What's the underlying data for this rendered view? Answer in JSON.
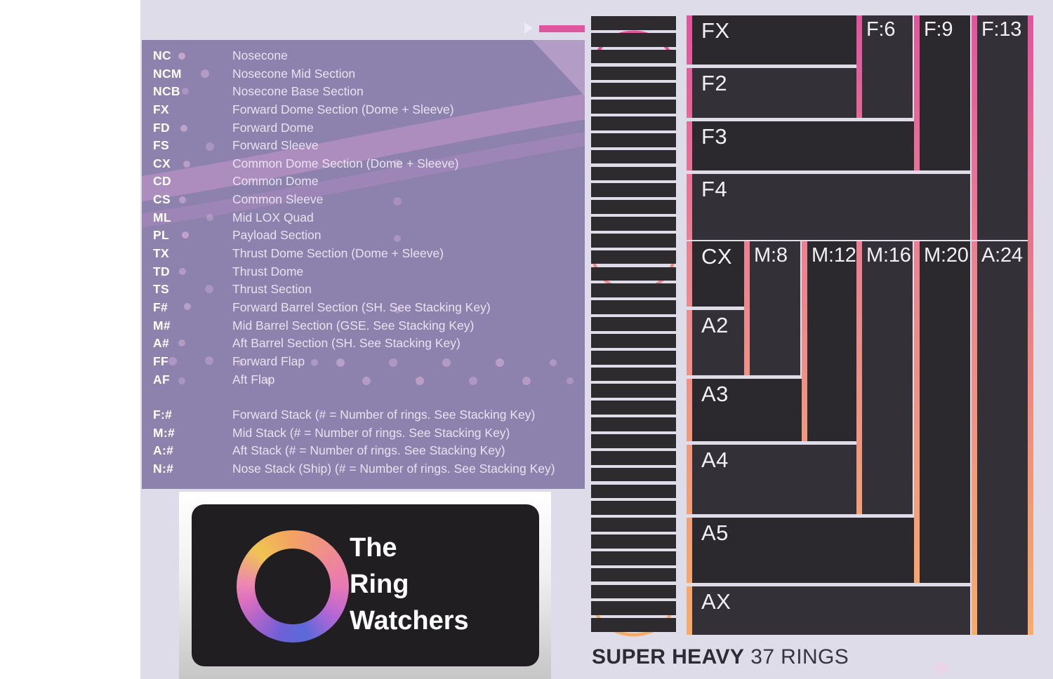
{
  "legend": {
    "items": [
      {
        "abbr": "NC",
        "desc": "Nosecone"
      },
      {
        "abbr": "NCM",
        "desc": "Nosecone Mid Section"
      },
      {
        "abbr": "NCB",
        "desc": "Nosecone Base Section"
      },
      {
        "abbr": "FX",
        "desc": "Forward Dome Section (Dome + Sleeve)"
      },
      {
        "abbr": "FD",
        "desc": "Forward Dome"
      },
      {
        "abbr": "FS",
        "desc": "Forward Sleeve"
      },
      {
        "abbr": "CX",
        "desc": "Common Dome Section (Dome + Sleeve)"
      },
      {
        "abbr": "CD",
        "desc": "Common Dome"
      },
      {
        "abbr": "CS",
        "desc": "Common Sleeve"
      },
      {
        "abbr": "ML",
        "desc": "Mid LOX Quad"
      },
      {
        "abbr": "PL",
        "desc": "Payload Section"
      },
      {
        "abbr": "TX",
        "desc": "Thrust Dome Section (Dome + Sleeve)"
      },
      {
        "abbr": "TD",
        "desc": "Thrust Dome"
      },
      {
        "abbr": "TS",
        "desc": "Thrust Section"
      },
      {
        "abbr": "F#",
        "desc": "Forward Barrel Section (SH. See Stacking Key)"
      },
      {
        "abbr": "M#",
        "desc": "Mid Barrel Section (GSE. See Stacking Key)"
      },
      {
        "abbr": "A#",
        "desc": "Aft Barrel Section (SH. See Stacking Key)"
      },
      {
        "abbr": "FF",
        "desc": "Forward Flap"
      },
      {
        "abbr": "AF",
        "desc": "Aft Flap"
      }
    ],
    "stack_items": [
      {
        "abbr": "F:#",
        "desc": "Forward Stack (# = Number of rings. See Stacking Key)"
      },
      {
        "abbr": "M:#",
        "desc": "Mid Stack (# = Number of rings. See Stacking Key)"
      },
      {
        "abbr": "A:#",
        "desc": "Aft Stack (# = Number of rings. See Stacking Key)"
      },
      {
        "abbr": "N:#",
        "desc": "Nose Stack (Ship) (# = Number of rings. See Stacking Key)"
      }
    ]
  },
  "booster": {
    "ring_count": 37
  },
  "stacking_key": {
    "sections": [
      "FX",
      "F2",
      "F3",
      "F4",
      "CX",
      "A2",
      "A3",
      "A4",
      "A5",
      "AX"
    ],
    "stacks": [
      "F:6",
      "F:9",
      "F:13",
      "M:8",
      "M:12",
      "M:16",
      "M:20",
      "A:24"
    ]
  },
  "caption": {
    "title": "SUPER HEAVY",
    "rings": "37 RINGS"
  },
  "logo": {
    "line1": "The",
    "line2": "Ring",
    "line3": "Watchers"
  },
  "colors": {
    "pink": "#e0559d",
    "salmon": "#ec8a90",
    "orange": "#f5ac6b",
    "panel_purple": "#8d81ae",
    "ring_dark": "#2e2b2f",
    "box_dark": "#2b292d",
    "box_light": "#333037",
    "background": "#dfdcea"
  }
}
